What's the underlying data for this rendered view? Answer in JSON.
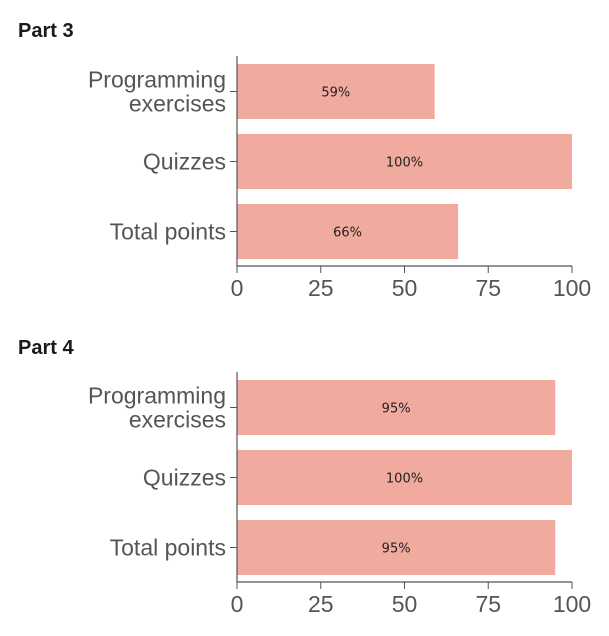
{
  "chart_data": [
    {
      "type": "bar",
      "orientation": "horizontal",
      "title": "Part 3",
      "categories": [
        "Programming exercises",
        "Quizzes",
        "Total points"
      ],
      "category_lines": [
        [
          "Programming",
          "exercises"
        ],
        [
          "Quizzes"
        ],
        [
          "Total points"
        ]
      ],
      "values": [
        59,
        100,
        66
      ],
      "data_labels": [
        "59%",
        "100%",
        "66%"
      ],
      "xlim": [
        0,
        100
      ],
      "xticks": [
        "0",
        "25",
        "50",
        "75",
        "100"
      ],
      "xlabel": "",
      "ylabel": "",
      "bar_color": "#f1aa9e",
      "grid": false
    },
    {
      "type": "bar",
      "orientation": "horizontal",
      "title": "Part 4",
      "categories": [
        "Programming exercises",
        "Quizzes",
        "Total points"
      ],
      "category_lines": [
        [
          "Programming",
          "exercises"
        ],
        [
          "Quizzes"
        ],
        [
          "Total points"
        ]
      ],
      "values": [
        95,
        100,
        95
      ],
      "data_labels": [
        "95%",
        "100%",
        "95%"
      ],
      "xlim": [
        0,
        100
      ],
      "xticks": [
        "0",
        "25",
        "50",
        "75",
        "100"
      ],
      "xlabel": "",
      "ylabel": "",
      "bar_color": "#f1aa9e",
      "grid": false
    }
  ]
}
